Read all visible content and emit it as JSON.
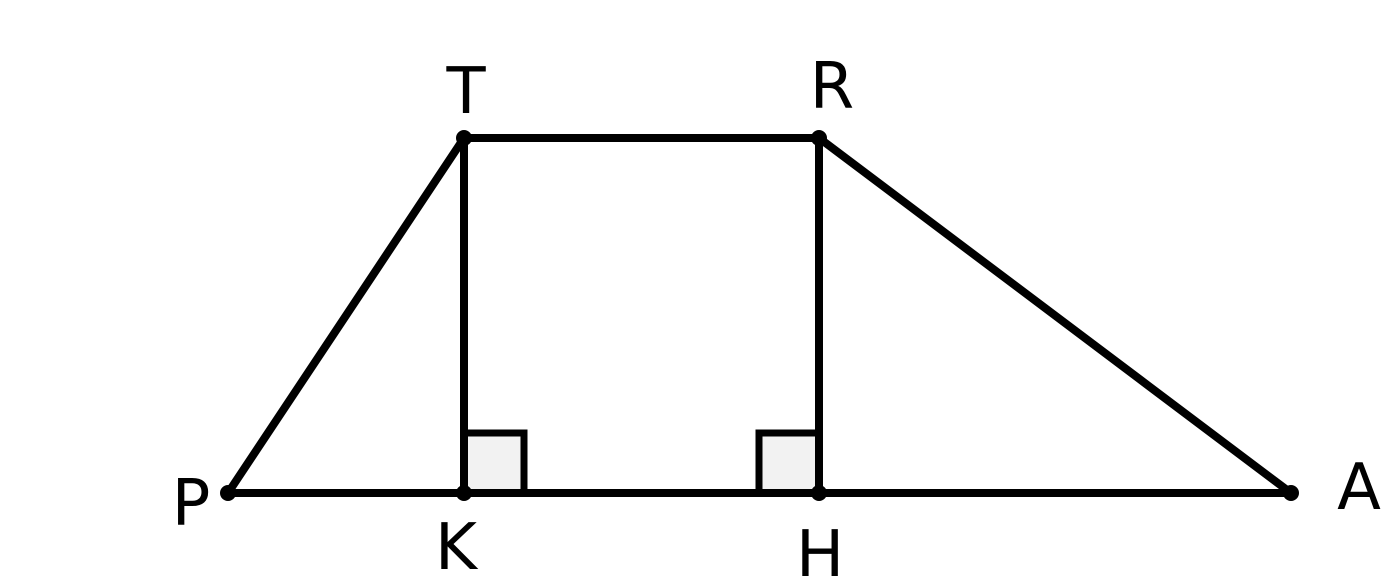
{
  "figure": {
    "type": "trapezoid with two altitudes",
    "colors": {
      "stroke": "#000000",
      "right_angle_fill": "#f2f2f2",
      "background": "#ffffff"
    },
    "segments": [
      "PT",
      "TR",
      "RA",
      "PA",
      "TK",
      "RH"
    ],
    "right_angles": [
      "TKH",
      "RHK"
    ]
  },
  "labels": {
    "T": "T",
    "R": "R",
    "P": "P",
    "A": "A",
    "K": "K",
    "H": "H"
  }
}
